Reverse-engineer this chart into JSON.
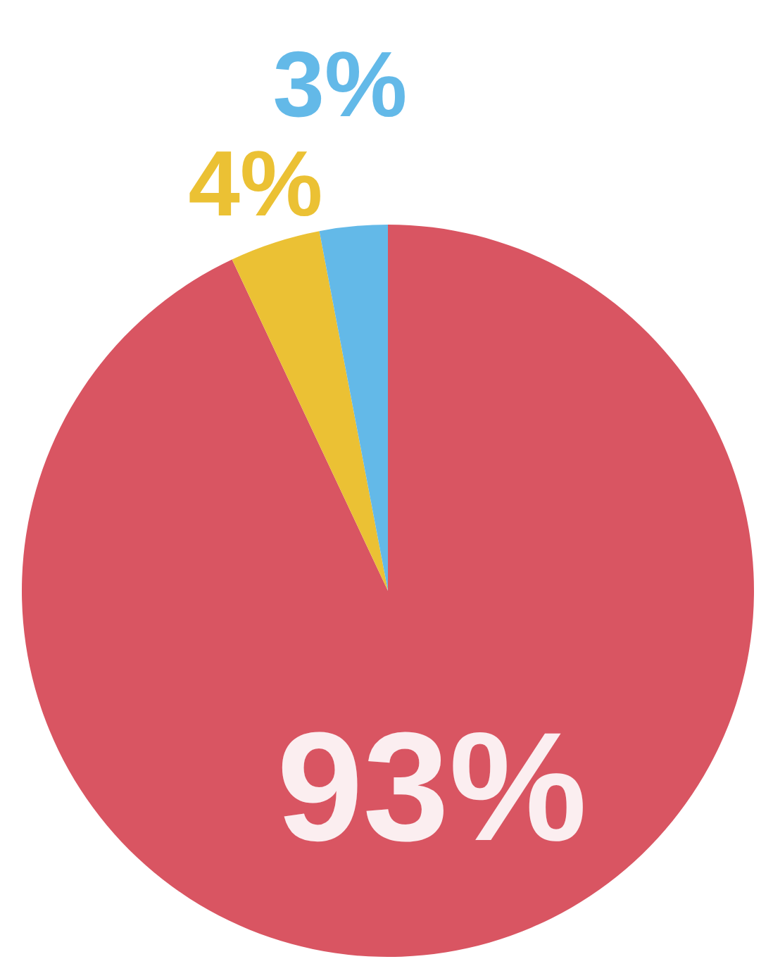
{
  "chart_data": {
    "type": "pie",
    "categories": [
      null,
      null,
      null
    ],
    "values": [
      93,
      4,
      3
    ],
    "colors": [
      "#d95562",
      "#ebc134",
      "#63b9e8"
    ],
    "value_labels": [
      "93%",
      "4%",
      "3%"
    ]
  }
}
